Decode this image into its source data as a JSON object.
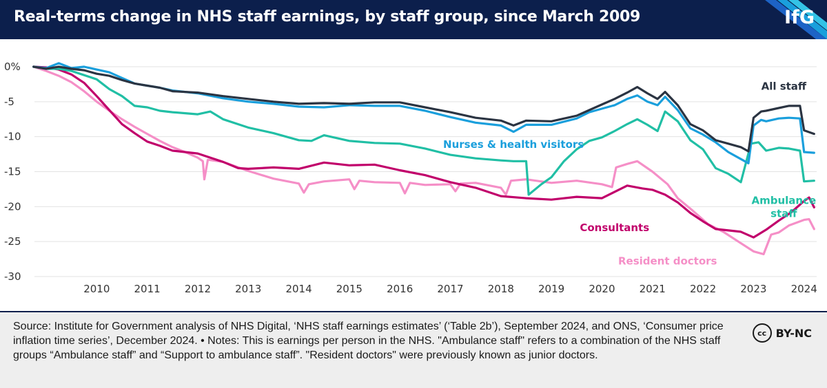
{
  "header": {
    "title": "Real-terms change in NHS staff earnings, by staff group, since March 2009",
    "logo": "IfG"
  },
  "footer": {
    "source": "Source: Institute for Government analysis of NHS Digital, ‘NHS staff earnings estimates’ (‘Table 2b’), September 2024, and ONS, ‘Consumer price inflation time series’, December 2024. • Notes: This is earnings per person in the NHS. \"Ambulance staff\" refers to a combination of the NHS staff groups “Ambulance staff” and “Support to ambulance staff”. \"Resident doctors\" were previously known as junior doctors.",
    "license_icon": "cc",
    "license": "BY-NC"
  },
  "colors": {
    "header_bg": "#0c1f4c",
    "all_staff": "#2b3442",
    "nurses": "#1a9fdc",
    "ambulance": "#21bfa5",
    "consultants": "#c1006b",
    "resident": "#f58fc7"
  },
  "chart_data": {
    "type": "line",
    "title": "Real-terms change in NHS staff earnings, by staff group, since March 2009",
    "xlabel": "",
    "ylabel": "",
    "xlim": [
      2009.2,
      2024.75
    ],
    "ylim": [
      -30,
      0
    ],
    "x_ticks": [
      2010,
      2011,
      2012,
      2013,
      2014,
      2015,
      2016,
      2017,
      2018,
      2019,
      2020,
      2021,
      2022,
      2023,
      2024
    ],
    "y_ticks": [
      0,
      -5,
      -10,
      -15,
      -20,
      -25,
      -30
    ],
    "y_tick_labels": [
      "0%",
      "-5",
      "-10",
      "-15",
      "-20",
      "-25",
      "-30"
    ],
    "grid": "horizontal",
    "legend": "direct labels",
    "series": [
      {
        "name": "Resident doctors",
        "color": "#f58fc7",
        "label_pos": [
          2021.8,
          -28.3
        ],
        "points": [
          [
            2009.25,
            0
          ],
          [
            2009.5,
            -0.6
          ],
          [
            2009.75,
            -1.3
          ],
          [
            2010,
            -2.2
          ],
          [
            2010.25,
            -3.5
          ],
          [
            2010.5,
            -5
          ],
          [
            2010.75,
            -6.3
          ],
          [
            2011,
            -7.5
          ],
          [
            2011.25,
            -8.6
          ],
          [
            2011.5,
            -9.6
          ],
          [
            2011.75,
            -10.6
          ],
          [
            2012,
            -11.5
          ],
          [
            2012.25,
            -12.2
          ],
          [
            2012.5,
            -13
          ],
          [
            2012.6,
            -13.5
          ],
          [
            2012.63,
            -16.1
          ],
          [
            2012.7,
            -13.3
          ],
          [
            2013,
            -13.6
          ],
          [
            2013.5,
            -14.9
          ],
          [
            2014,
            -16
          ],
          [
            2014.5,
            -16.7
          ],
          [
            2014.6,
            -18
          ],
          [
            2014.7,
            -16.8
          ],
          [
            2015,
            -16.4
          ],
          [
            2015.5,
            -16.1
          ],
          [
            2015.6,
            -17.5
          ],
          [
            2015.7,
            -16.3
          ],
          [
            2016,
            -16.5
          ],
          [
            2016.5,
            -16.6
          ],
          [
            2016.6,
            -18.1
          ],
          [
            2016.7,
            -16.6
          ],
          [
            2017,
            -16.9
          ],
          [
            2017.5,
            -16.8
          ],
          [
            2017.6,
            -17.8
          ],
          [
            2017.7,
            -16.7
          ],
          [
            2018,
            -16.6
          ],
          [
            2018.5,
            -17.3
          ],
          [
            2018.6,
            -18.3
          ],
          [
            2018.7,
            -16.3
          ],
          [
            2019,
            -16.1
          ],
          [
            2019.5,
            -16.6
          ],
          [
            2020,
            -16.3
          ],
          [
            2020.5,
            -16.8
          ],
          [
            2020.7,
            -17.2
          ],
          [
            2020.78,
            -14.4
          ],
          [
            2021,
            -13.9
          ],
          [
            2021.2,
            -13.5
          ],
          [
            2021.5,
            -15
          ],
          [
            2021.8,
            -16.8
          ],
          [
            2022,
            -18.8
          ],
          [
            2022.3,
            -20.6
          ],
          [
            2022.6,
            -22.5
          ],
          [
            2022.9,
            -23.6
          ],
          [
            2023.2,
            -25
          ],
          [
            2023.5,
            -26.4
          ],
          [
            2023.7,
            -26.8
          ],
          [
            2023.85,
            -24
          ],
          [
            2024,
            -23.7
          ],
          [
            2024.2,
            -22.7
          ],
          [
            2024.5,
            -21.9
          ],
          [
            2024.6,
            -21.8
          ],
          [
            2024.7,
            -23.2
          ]
        ]
      },
      {
        "name": "Consultants",
        "color": "#c1006b",
        "label_pos": [
          2020.75,
          -23.5
        ],
        "points": [
          [
            2009.25,
            0
          ],
          [
            2009.5,
            -0.1
          ],
          [
            2009.75,
            -0.4
          ],
          [
            2010,
            -1.1
          ],
          [
            2010.25,
            -2.3
          ],
          [
            2010.5,
            -4.2
          ],
          [
            2010.75,
            -6.2
          ],
          [
            2011,
            -8.2
          ],
          [
            2011.25,
            -9.5
          ],
          [
            2011.5,
            -10.7
          ],
          [
            2011.75,
            -11.3
          ],
          [
            2012,
            -12
          ],
          [
            2012.5,
            -12.4
          ],
          [
            2013,
            -13.6
          ],
          [
            2013.3,
            -14.5
          ],
          [
            2013.5,
            -14.6
          ],
          [
            2014,
            -14.4
          ],
          [
            2014.5,
            -14.6
          ],
          [
            2015,
            -13.7
          ],
          [
            2015.5,
            -14.1
          ],
          [
            2016,
            -14
          ],
          [
            2016.5,
            -14.8
          ],
          [
            2017,
            -15.5
          ],
          [
            2017.5,
            -16.5
          ],
          [
            2018,
            -17.3
          ],
          [
            2018.5,
            -18.5
          ],
          [
            2019,
            -18.8
          ],
          [
            2019.5,
            -19
          ],
          [
            2020,
            -18.6
          ],
          [
            2020.5,
            -18.8
          ],
          [
            2021,
            -17
          ],
          [
            2021.3,
            -17.4
          ],
          [
            2021.5,
            -17.6
          ],
          [
            2021.75,
            -18.3
          ],
          [
            2022,
            -19.4
          ],
          [
            2022.25,
            -20.9
          ],
          [
            2022.5,
            -22.1
          ],
          [
            2022.75,
            -23.2
          ],
          [
            2023,
            -23.4
          ],
          [
            2023.25,
            -23.6
          ],
          [
            2023.5,
            -24.4
          ],
          [
            2023.75,
            -23.3
          ],
          [
            2024,
            -22
          ],
          [
            2024.25,
            -20.8
          ],
          [
            2024.5,
            -19.2
          ],
          [
            2024.6,
            -18.7
          ],
          [
            2024.7,
            -20.1
          ]
        ]
      },
      {
        "name": "Ambulance staff",
        "color": "#21bfa5",
        "label_pos": [
          2024.1,
          -19.6
        ],
        "label_lines": [
          "Ambulance",
          "staff"
        ],
        "points": [
          [
            2009.25,
            0
          ],
          [
            2009.5,
            -0.3
          ],
          [
            2009.75,
            -0.3
          ],
          [
            2010,
            -0.6
          ],
          [
            2010.25,
            -1.2
          ],
          [
            2010.5,
            -1.8
          ],
          [
            2010.75,
            -3.2
          ],
          [
            2011,
            -4.2
          ],
          [
            2011.25,
            -5.6
          ],
          [
            2011.5,
            -5.8
          ],
          [
            2011.75,
            -6.3
          ],
          [
            2012,
            -6.5
          ],
          [
            2012.5,
            -6.8
          ],
          [
            2012.75,
            -6.4
          ],
          [
            2013,
            -7.5
          ],
          [
            2013.5,
            -8.7
          ],
          [
            2014,
            -9.5
          ],
          [
            2014.5,
            -10.5
          ],
          [
            2014.75,
            -10.6
          ],
          [
            2015,
            -9.8
          ],
          [
            2015.5,
            -10.6
          ],
          [
            2016,
            -10.9
          ],
          [
            2016.5,
            -11
          ],
          [
            2017,
            -11.7
          ],
          [
            2017.5,
            -12.6
          ],
          [
            2018,
            -13.1
          ],
          [
            2018.5,
            -13.4
          ],
          [
            2018.75,
            -13.5
          ],
          [
            2019,
            -13.5
          ],
          [
            2019.05,
            -18.3
          ],
          [
            2019.3,
            -16.8
          ],
          [
            2019.5,
            -15.8
          ],
          [
            2019.75,
            -13.5
          ],
          [
            2020,
            -11.8
          ],
          [
            2020.25,
            -10.6
          ],
          [
            2020.5,
            -10.1
          ],
          [
            2020.75,
            -9.2
          ],
          [
            2021,
            -8.2
          ],
          [
            2021.2,
            -7.5
          ],
          [
            2021.4,
            -8.3
          ],
          [
            2021.6,
            -9.2
          ],
          [
            2021.75,
            -6.4
          ],
          [
            2022,
            -7.8
          ],
          [
            2022.25,
            -10.5
          ],
          [
            2022.5,
            -11.8
          ],
          [
            2022.75,
            -14.5
          ],
          [
            2023,
            -15.3
          ],
          [
            2023.25,
            -16.5
          ],
          [
            2023.45,
            -11
          ],
          [
            2023.6,
            -10.8
          ],
          [
            2023.75,
            -12
          ],
          [
            2024,
            -11.6
          ],
          [
            2024.2,
            -11.7
          ],
          [
            2024.42,
            -12
          ],
          [
            2024.5,
            -16.4
          ],
          [
            2024.7,
            -16.3
          ]
        ]
      },
      {
        "name": "Nurses & health visitors",
        "color": "#1a9fdc",
        "label_pos": [
          2018.75,
          -11.6
        ],
        "points": [
          [
            2009.25,
            0
          ],
          [
            2009.5,
            -0.2
          ],
          [
            2009.75,
            0.5
          ],
          [
            2010,
            -0.2
          ],
          [
            2010.25,
            0
          ],
          [
            2010.5,
            -0.4
          ],
          [
            2010.75,
            -0.8
          ],
          [
            2011,
            -1.6
          ],
          [
            2011.25,
            -2.4
          ],
          [
            2011.5,
            -2.7
          ],
          [
            2011.75,
            -3
          ],
          [
            2012,
            -3.4
          ],
          [
            2012.5,
            -3.8
          ],
          [
            2013,
            -4.5
          ],
          [
            2013.5,
            -5
          ],
          [
            2014,
            -5.3
          ],
          [
            2014.5,
            -5.7
          ],
          [
            2015,
            -5.8
          ],
          [
            2015.5,
            -5.5
          ],
          [
            2016,
            -5.6
          ],
          [
            2016.5,
            -5.6
          ],
          [
            2017,
            -6.3
          ],
          [
            2017.5,
            -7.2
          ],
          [
            2018,
            -8
          ],
          [
            2018.5,
            -8.4
          ],
          [
            2018.75,
            -9.3
          ],
          [
            2019,
            -8.3
          ],
          [
            2019.5,
            -8.3
          ],
          [
            2020,
            -7.4
          ],
          [
            2020.25,
            -6.5
          ],
          [
            2020.5,
            -6
          ],
          [
            2020.75,
            -5.5
          ],
          [
            2021,
            -4.6
          ],
          [
            2021.2,
            -4.1
          ],
          [
            2021.4,
            -5
          ],
          [
            2021.6,
            -5.5
          ],
          [
            2021.75,
            -4.3
          ],
          [
            2022,
            -6.2
          ],
          [
            2022.25,
            -8.8
          ],
          [
            2022.5,
            -9.7
          ],
          [
            2022.75,
            -10.8
          ],
          [
            2023,
            -12.2
          ],
          [
            2023.25,
            -13.2
          ],
          [
            2023.4,
            -13.8
          ],
          [
            2023.5,
            -8.4
          ],
          [
            2023.65,
            -7.6
          ],
          [
            2023.75,
            -7.8
          ],
          [
            2024,
            -7.4
          ],
          [
            2024.2,
            -7.3
          ],
          [
            2024.42,
            -7.4
          ],
          [
            2024.5,
            -12.2
          ],
          [
            2024.7,
            -12.3
          ]
        ]
      },
      {
        "name": "All staff",
        "color": "#2b3442",
        "label_pos": [
          2024.1,
          -3.3
        ],
        "points": [
          [
            2009.25,
            0
          ],
          [
            2009.5,
            -0.3
          ],
          [
            2009.75,
            0
          ],
          [
            2010,
            -0.3
          ],
          [
            2010.25,
            -0.5
          ],
          [
            2010.5,
            -1
          ],
          [
            2010.75,
            -1.3
          ],
          [
            2011,
            -1.9
          ],
          [
            2011.25,
            -2.4
          ],
          [
            2011.5,
            -2.7
          ],
          [
            2011.75,
            -3
          ],
          [
            2012,
            -3.5
          ],
          [
            2012.5,
            -3.7
          ],
          [
            2013,
            -4.2
          ],
          [
            2013.5,
            -4.6
          ],
          [
            2014,
            -5
          ],
          [
            2014.5,
            -5.3
          ],
          [
            2015,
            -5.2
          ],
          [
            2015.5,
            -5.3
          ],
          [
            2016,
            -5.1
          ],
          [
            2016.5,
            -5.1
          ],
          [
            2017,
            -5.8
          ],
          [
            2017.5,
            -6.5
          ],
          [
            2018,
            -7.3
          ],
          [
            2018.5,
            -7.7
          ],
          [
            2018.75,
            -8.4
          ],
          [
            2019,
            -7.7
          ],
          [
            2019.5,
            -7.8
          ],
          [
            2020,
            -7
          ],
          [
            2020.25,
            -6.2
          ],
          [
            2020.5,
            -5.4
          ],
          [
            2020.75,
            -4.6
          ],
          [
            2021,
            -3.7
          ],
          [
            2021.2,
            -2.9
          ],
          [
            2021.4,
            -3.8
          ],
          [
            2021.6,
            -4.6
          ],
          [
            2021.75,
            -3.6
          ],
          [
            2022,
            -5.5
          ],
          [
            2022.25,
            -8.2
          ],
          [
            2022.5,
            -9.1
          ],
          [
            2022.75,
            -10.5
          ],
          [
            2023,
            -11
          ],
          [
            2023.25,
            -11.5
          ],
          [
            2023.4,
            -12.1
          ],
          [
            2023.5,
            -7.3
          ],
          [
            2023.65,
            -6.4
          ],
          [
            2023.75,
            -6.3
          ],
          [
            2024,
            -5.9
          ],
          [
            2024.2,
            -5.6
          ],
          [
            2024.42,
            -5.6
          ],
          [
            2024.5,
            -9.1
          ],
          [
            2024.7,
            -9.6
          ]
        ]
      }
    ]
  }
}
